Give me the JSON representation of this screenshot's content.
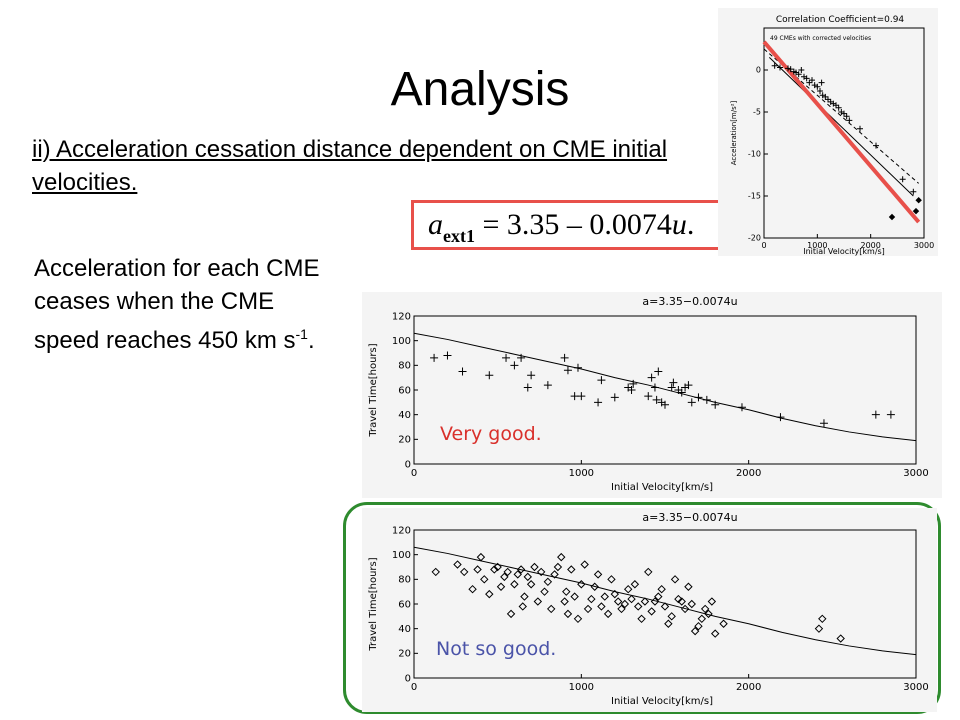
{
  "slide": {
    "title": "Analysis",
    "subtitle": "ii) Acceleration cessation distance dependent on CME initial velocities.",
    "body_main": "Acceleration for each CME ceases when the CME speed reaches 450 km s",
    "body_sup": "-1",
    "body_end": ".",
    "formula": {
      "lhs": "a",
      "sub": "ext1",
      "rhs": " = 3.35 – 0.0074",
      "var": "u",
      "end": "."
    },
    "highlight_color": "#e8504a",
    "box_color": "#2e8b2e"
  },
  "chart_data": [
    {
      "type": "scatter",
      "title": "Correlation Coefficient=0.94",
      "annotation": "49 CMEs with corrected velocities",
      "xlabel": "Initial Velocity[km/s]",
      "ylabel": "Acceleration[m/s²]",
      "xlim": [
        0,
        3000
      ],
      "ylim": [
        -20,
        5
      ],
      "xticks": [
        0,
        1000,
        2000,
        3000
      ],
      "yticks": [
        0,
        -5,
        -10,
        -15,
        -20
      ],
      "series": [
        {
          "marker": "plus",
          "x": [
            200,
            300,
            450,
            500,
            560,
            600,
            650,
            700,
            750,
            800,
            850,
            900,
            950,
            1000,
            1050,
            1080,
            1100,
            1150,
            1200,
            1250,
            1300,
            1350,
            1400,
            1450,
            1500,
            1550,
            1600,
            1800,
            2100,
            2600,
            2800
          ],
          "y": [
            0.5,
            0.3,
            0.2,
            0.1,
            -0.2,
            -0.3,
            -0.5,
            0.0,
            -0.8,
            -1.0,
            -1.5,
            -1.2,
            -1.8,
            -2.0,
            -2.5,
            -1.5,
            -3.0,
            -3.2,
            -3.5,
            -3.8,
            -4.0,
            -4.2,
            -4.5,
            -5.0,
            -5.2,
            -5.5,
            -6.0,
            -7.0,
            -9.0,
            -13.0,
            -14.5
          ]
        },
        {
          "marker": "diamond",
          "x": [
            2400,
            2850,
            2900
          ],
          "y": [
            -17.5,
            -16.8,
            -15.5
          ]
        }
      ],
      "fits": [
        {
          "style": "solid",
          "x": [
            100,
            2800
          ],
          "y": [
            1.5,
            -15.0
          ]
        },
        {
          "style": "dashed",
          "x": [
            0,
            2900
          ],
          "y": [
            2.5,
            -13.5
          ]
        }
      ],
      "highlight_line": {
        "x": [
          0,
          2900
        ],
        "y": [
          3.35,
          -18.1
        ]
      }
    },
    {
      "type": "scatter",
      "title": "a=3.35−0.0074u",
      "label": "Very good.",
      "label_color": "#d9302b",
      "xlabel": "Initial Velocity[km/s]",
      "ylabel": "Travel Time[hours]",
      "xlim": [
        0,
        3000
      ],
      "ylim": [
        0,
        120
      ],
      "xticks": [
        0,
        1000,
        2000,
        3000
      ],
      "yticks": [
        0,
        20,
        40,
        60,
        80,
        100,
        120
      ],
      "marker": "plus",
      "x": [
        120,
        200,
        290,
        450,
        550,
        600,
        640,
        680,
        700,
        800,
        900,
        920,
        960,
        980,
        1000,
        1100,
        1120,
        1200,
        1280,
        1300,
        1310,
        1400,
        1420,
        1440,
        1450,
        1460,
        1480,
        1500,
        1540,
        1550,
        1580,
        1600,
        1620,
        1640,
        1660,
        1700,
        1750,
        1800,
        1960,
        2190,
        2450,
        2760,
        2850
      ],
      "y": [
        86,
        88,
        75,
        72,
        86,
        80,
        86,
        62,
        72,
        64,
        86,
        76,
        55,
        78,
        55,
        50,
        68,
        54,
        62,
        60,
        65,
        55,
        70,
        62,
        52,
        75,
        50,
        48,
        62,
        66,
        60,
        58,
        62,
        64,
        50,
        54,
        52,
        48,
        46,
        38,
        33,
        40,
        40
      ],
      "curve": {
        "x": [
          0,
          200,
          400,
          600,
          800,
          1000,
          1200,
          1400,
          1600,
          1800,
          2000,
          2200,
          2400,
          2600,
          2800,
          3000
        ],
        "y": [
          106,
          101,
          95,
          89,
          83,
          77,
          70,
          64,
          57,
          50,
          44,
          37,
          31,
          26,
          22,
          19
        ]
      }
    },
    {
      "type": "scatter",
      "title": "a=3.35−0.0074u",
      "label": "Not so good.",
      "label_color": "#4a53a8",
      "xlabel": "Initial Velocity[km/s]",
      "ylabel": "Travel Time[hours]",
      "xlim": [
        0,
        3000
      ],
      "ylim": [
        0,
        120
      ],
      "xticks": [
        0,
        1000,
        2000,
        3000
      ],
      "yticks": [
        0,
        20,
        40,
        60,
        80,
        100,
        120
      ],
      "marker": "diamond",
      "x": [
        130,
        260,
        300,
        350,
        380,
        400,
        420,
        450,
        480,
        500,
        520,
        540,
        560,
        580,
        600,
        620,
        640,
        650,
        660,
        680,
        700,
        720,
        740,
        760,
        780,
        800,
        820,
        840,
        860,
        880,
        900,
        910,
        920,
        940,
        960,
        980,
        1000,
        1020,
        1040,
        1060,
        1080,
        1100,
        1120,
        1140,
        1160,
        1180,
        1200,
        1220,
        1240,
        1260,
        1280,
        1300,
        1320,
        1340,
        1360,
        1380,
        1400,
        1420,
        1440,
        1460,
        1480,
        1500,
        1520,
        1540,
        1560,
        1580,
        1600,
        1620,
        1640,
        1660,
        1680,
        1700,
        1720,
        1740,
        1760,
        1780,
        1800,
        1850,
        2420,
        2440,
        2550
      ],
      "y": [
        86,
        92,
        86,
        72,
        88,
        98,
        80,
        68,
        88,
        90,
        74,
        82,
        86,
        52,
        76,
        84,
        88,
        58,
        66,
        82,
        76,
        90,
        62,
        86,
        70,
        78,
        56,
        84,
        90,
        98,
        62,
        70,
        52,
        88,
        66,
        48,
        76,
        92,
        56,
        64,
        74,
        84,
        58,
        66,
        52,
        80,
        68,
        62,
        56,
        60,
        72,
        64,
        76,
        58,
        48,
        62,
        86,
        54,
        62,
        66,
        72,
        58,
        44,
        50,
        80,
        64,
        62,
        56,
        74,
        60,
        38,
        42,
        48,
        56,
        52,
        62,
        36,
        44,
        40,
        48,
        32
      ],
      "curve": {
        "x": [
          0,
          200,
          400,
          600,
          800,
          1000,
          1200,
          1400,
          1600,
          1800,
          2000,
          2200,
          2400,
          2600,
          2800,
          3000
        ],
        "y": [
          106,
          101,
          95,
          89,
          83,
          77,
          70,
          64,
          57,
          50,
          44,
          37,
          31,
          26,
          22,
          19
        ]
      }
    }
  ]
}
